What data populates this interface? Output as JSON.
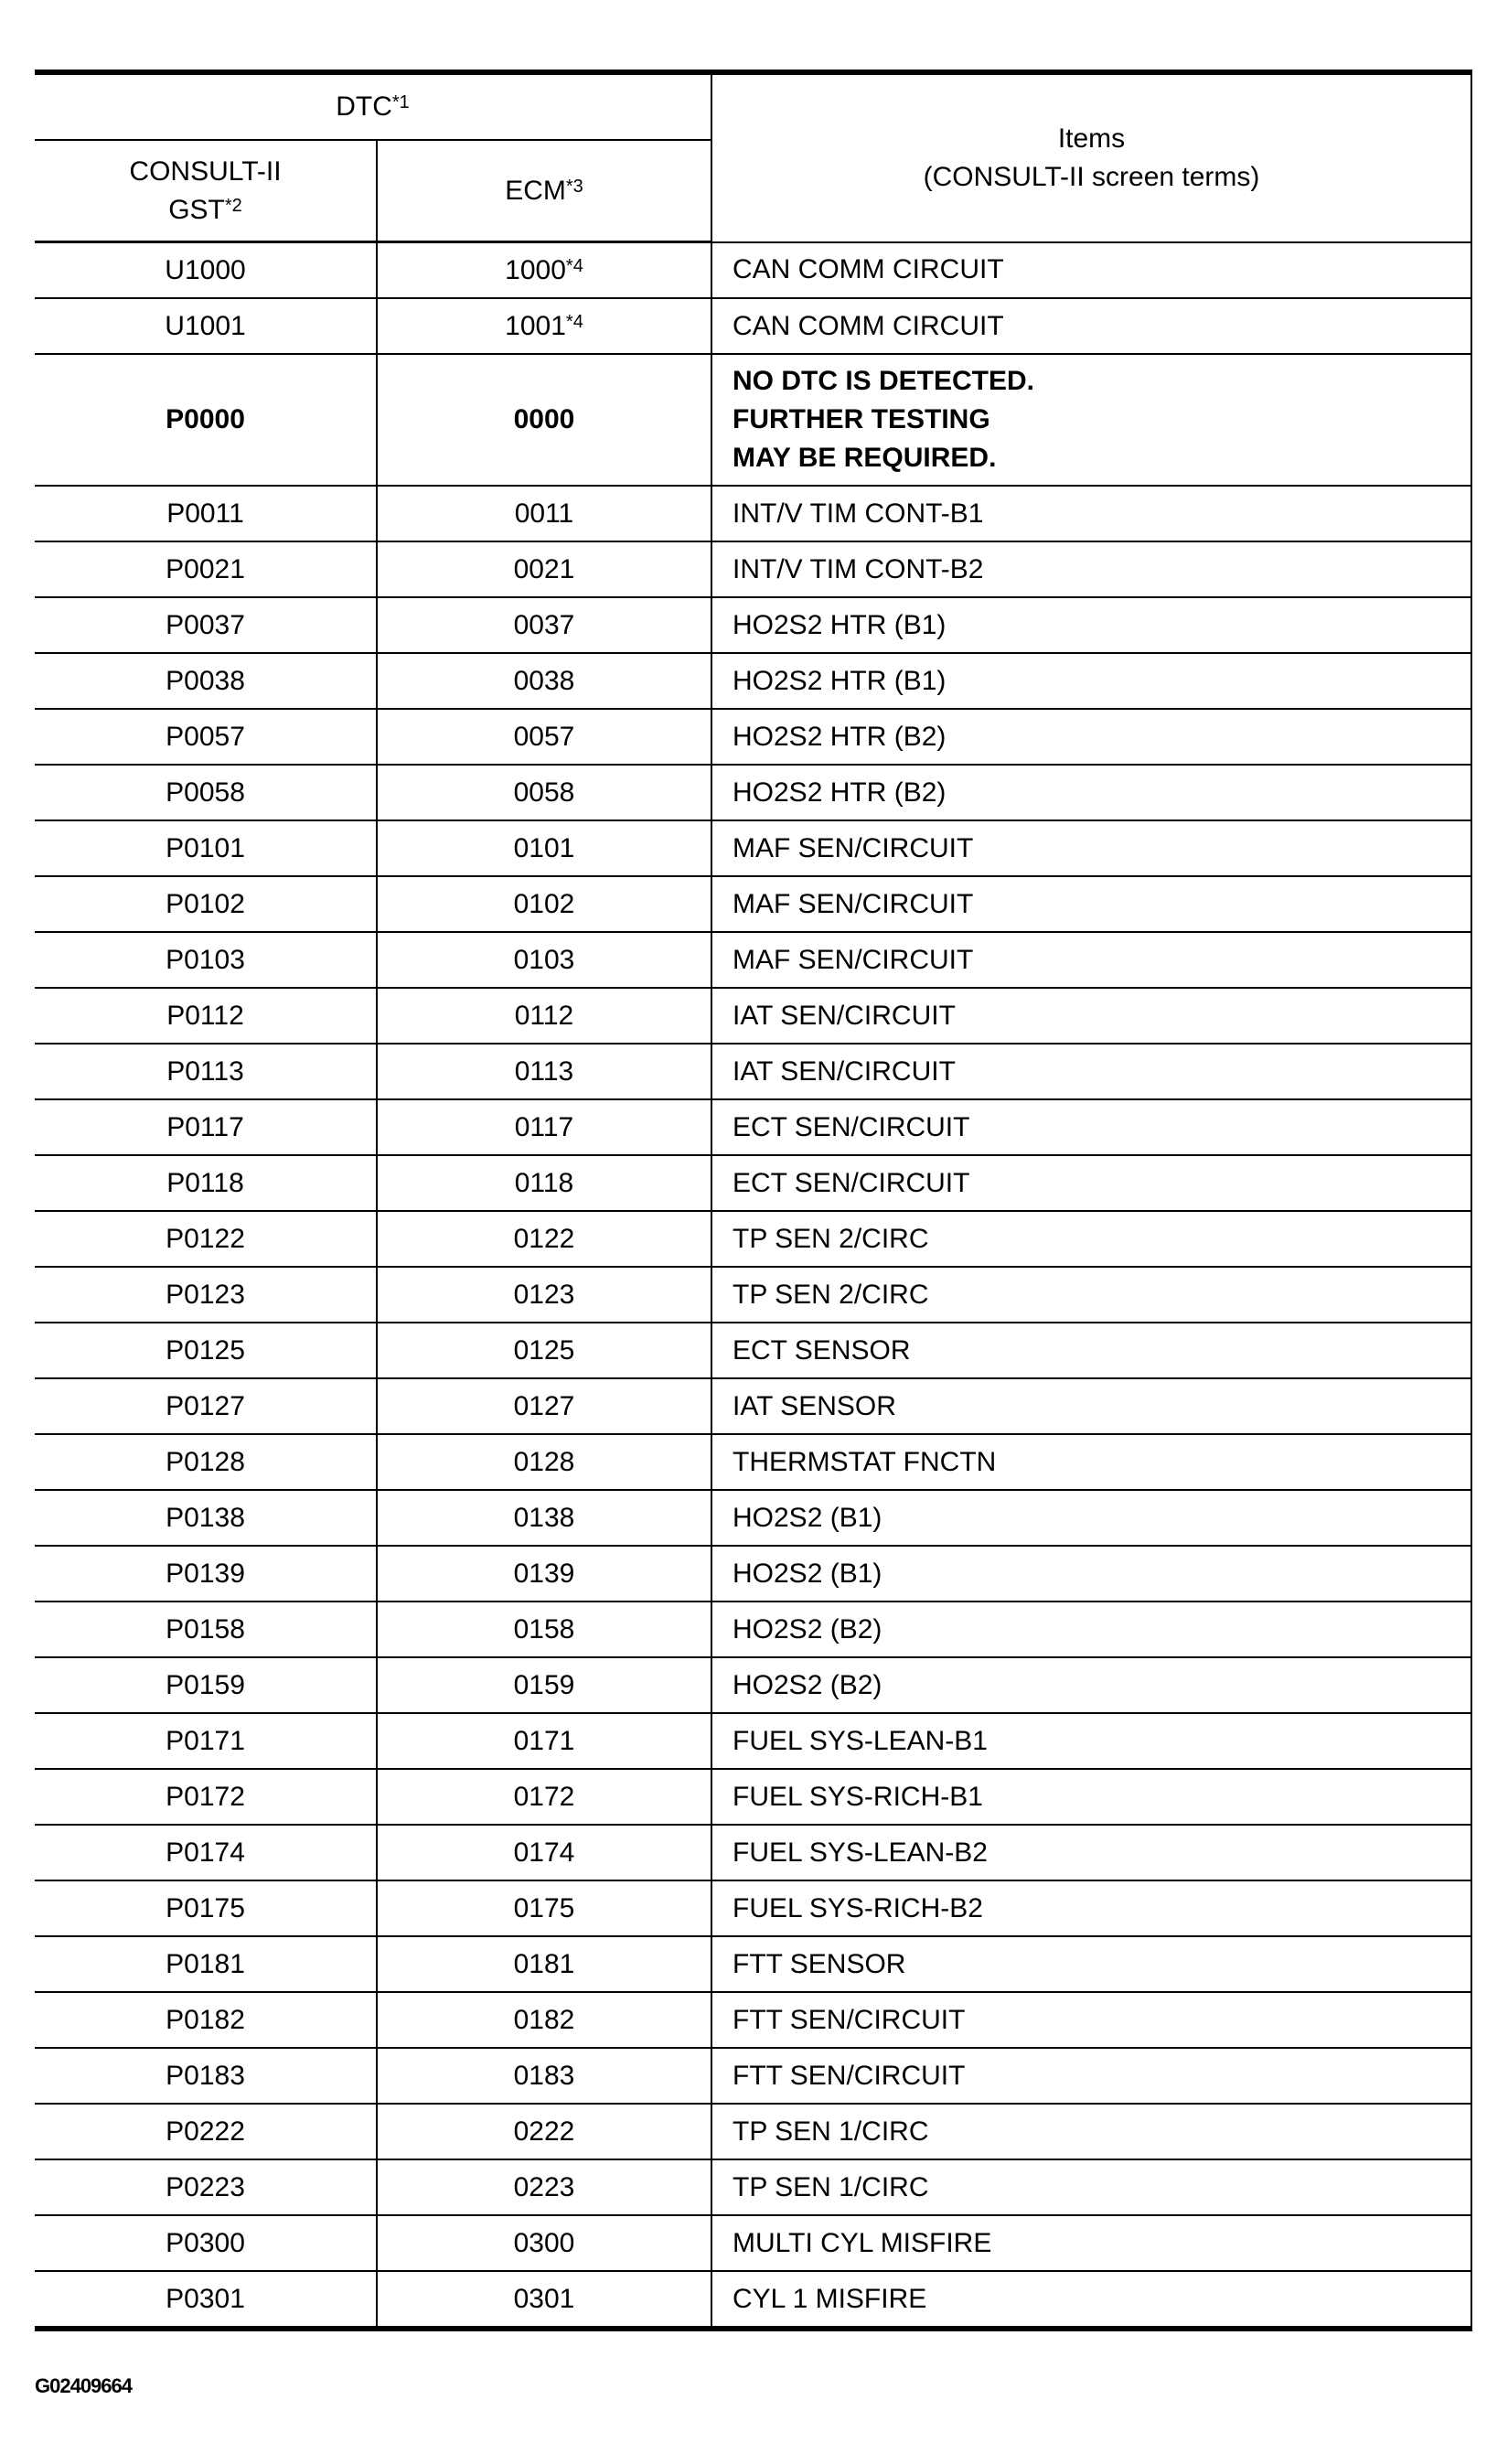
{
  "header": {
    "dtc": "DTC",
    "dtc_note": "*1",
    "consult_gst_line1": "CONSULT-II",
    "consult_gst_line2": "GST",
    "consult_gst_note": "*2",
    "ecm": "ECM",
    "ecm_note": "*3",
    "items_line1": "Items",
    "items_line2": "(CONSULT-II screen terms)"
  },
  "rows": [
    {
      "gst": "U1000",
      "ecm": "1000",
      "ecm_note": "*4",
      "item": "CAN COMM CIRCUIT"
    },
    {
      "gst": "U1001",
      "ecm": "1001",
      "ecm_note": "*4",
      "item": "CAN COMM CIRCUIT"
    },
    {
      "gst": "P0000",
      "ecm": "0000",
      "item_lines": [
        "NO DTC IS DETECTED.",
        "FURTHER TESTING",
        "MAY BE REQUIRED."
      ],
      "bold": true
    },
    {
      "gst": "P0011",
      "ecm": "0011",
      "item": "INT/V TIM CONT-B1"
    },
    {
      "gst": "P0021",
      "ecm": "0021",
      "item": "INT/V TIM CONT-B2"
    },
    {
      "gst": "P0037",
      "ecm": "0037",
      "item": "HO2S2 HTR (B1)"
    },
    {
      "gst": "P0038",
      "ecm": "0038",
      "item": "HO2S2 HTR (B1)"
    },
    {
      "gst": "P0057",
      "ecm": "0057",
      "item": "HO2S2 HTR (B2)"
    },
    {
      "gst": "P0058",
      "ecm": "0058",
      "item": "HO2S2 HTR (B2)"
    },
    {
      "gst": "P0101",
      "ecm": "0101",
      "item": "MAF SEN/CIRCUIT"
    },
    {
      "gst": "P0102",
      "ecm": "0102",
      "item": "MAF SEN/CIRCUIT"
    },
    {
      "gst": "P0103",
      "ecm": "0103",
      "item": "MAF SEN/CIRCUIT"
    },
    {
      "gst": "P0112",
      "ecm": "0112",
      "item": "IAT SEN/CIRCUIT"
    },
    {
      "gst": "P0113",
      "ecm": "0113",
      "item": "IAT SEN/CIRCUIT"
    },
    {
      "gst": "P0117",
      "ecm": "0117",
      "item": "ECT SEN/CIRCUIT"
    },
    {
      "gst": "P0118",
      "ecm": "0118",
      "item": "ECT SEN/CIRCUIT"
    },
    {
      "gst": "P0122",
      "ecm": "0122",
      "item": "TP SEN 2/CIRC"
    },
    {
      "gst": "P0123",
      "ecm": "0123",
      "item": "TP SEN 2/CIRC"
    },
    {
      "gst": "P0125",
      "ecm": "0125",
      "item": "ECT SENSOR"
    },
    {
      "gst": "P0127",
      "ecm": "0127",
      "item": "IAT SENSOR"
    },
    {
      "gst": "P0128",
      "ecm": "0128",
      "item": "THERMSTAT FNCTN"
    },
    {
      "gst": "P0138",
      "ecm": "0138",
      "item": "HO2S2 (B1)"
    },
    {
      "gst": "P0139",
      "ecm": "0139",
      "item": "HO2S2 (B1)"
    },
    {
      "gst": "P0158",
      "ecm": "0158",
      "item": "HO2S2 (B2)"
    },
    {
      "gst": "P0159",
      "ecm": "0159",
      "item": "HO2S2 (B2)"
    },
    {
      "gst": "P0171",
      "ecm": "0171",
      "item": "FUEL SYS-LEAN-B1"
    },
    {
      "gst": "P0172",
      "ecm": "0172",
      "item": "FUEL SYS-RICH-B1"
    },
    {
      "gst": "P0174",
      "ecm": "0174",
      "item": "FUEL SYS-LEAN-B2"
    },
    {
      "gst": "P0175",
      "ecm": "0175",
      "item": "FUEL SYS-RICH-B2"
    },
    {
      "gst": "P0181",
      "ecm": "0181",
      "item": "FTT SENSOR"
    },
    {
      "gst": "P0182",
      "ecm": "0182",
      "item": "FTT SEN/CIRCUIT"
    },
    {
      "gst": "P0183",
      "ecm": "0183",
      "item": "FTT SEN/CIRCUIT"
    },
    {
      "gst": "P0222",
      "ecm": "0222",
      "item": "TP SEN 1/CIRC"
    },
    {
      "gst": "P0223",
      "ecm": "0223",
      "item": "TP SEN 1/CIRC"
    },
    {
      "gst": "P0300",
      "ecm": "0300",
      "item": "MULTI CYL MISFIRE"
    },
    {
      "gst": "P0301",
      "ecm": "0301",
      "item": "CYL 1 MISFIRE"
    }
  ],
  "figure_id": "G02409664"
}
